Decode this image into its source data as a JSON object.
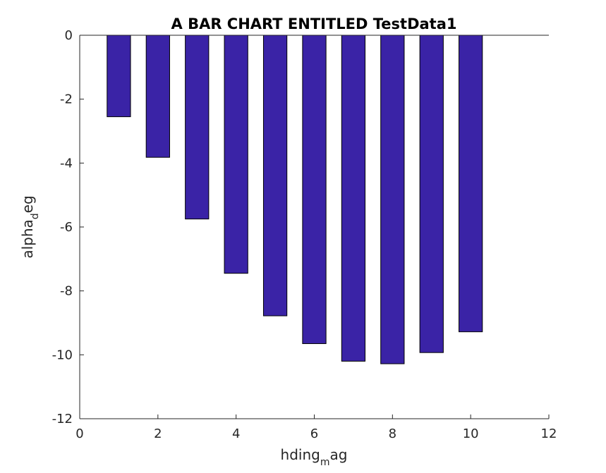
{
  "chart_data": {
    "type": "bar",
    "title": "A BAR CHART ENTITLED TestData1",
    "xlabel": {
      "base": "hding",
      "sub": "m",
      "rest": "ag"
    },
    "ylabel": {
      "base": "alpha",
      "sub": "d",
      "rest": "eg"
    },
    "x": [
      1,
      2,
      3,
      4,
      5,
      6,
      7,
      8,
      9,
      10
    ],
    "values": [
      -2.55,
      -3.82,
      -5.75,
      -7.45,
      -8.78,
      -9.65,
      -10.2,
      -10.28,
      -9.93,
      -9.28
    ],
    "xlim": [
      0,
      12
    ],
    "ylim": [
      -12,
      0
    ],
    "xticks": [
      0,
      2,
      4,
      6,
      8,
      10,
      12
    ],
    "yticks": [
      0,
      -2,
      -4,
      -6,
      -8,
      -10,
      -12
    ],
    "bar_color": "#3a23a6",
    "bar_edge_color": "#000000",
    "grid": false
  }
}
